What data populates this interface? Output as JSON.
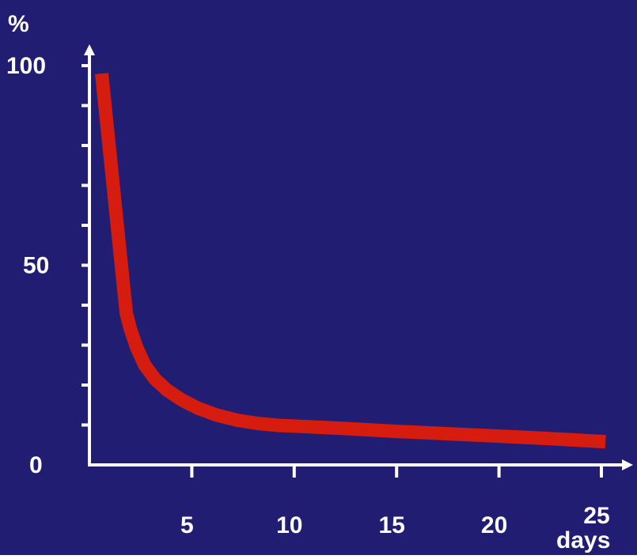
{
  "colors": {
    "background": "#211D73",
    "axis": "#FFFFFF",
    "curve": "#D61C0E",
    "text": "#FFFFFF"
  },
  "chart_data": {
    "type": "line",
    "title": "",
    "ylabel": "%",
    "xlabel": "days",
    "xlim": [
      0.5,
      26.5
    ],
    "ylim": [
      0,
      100
    ],
    "x_ticks": [
      5,
      10,
      15,
      20,
      25
    ],
    "x_tick_labels": [
      "5",
      "10",
      "15",
      "20",
      "25"
    ],
    "y_tick_labels": [
      {
        "value": 100,
        "label": "100"
      },
      {
        "value": 50,
        "label": "50"
      },
      {
        "value": 0,
        "label": "0"
      }
    ],
    "y_minor_step": 10,
    "grid": false,
    "legend": "none",
    "series": [
      {
        "x": [
          0.6,
          1.0,
          1.4,
          1.8,
          2.0,
          2.3,
          2.7,
          3.2,
          3.8,
          4.5,
          5.3,
          6.2,
          7.2,
          8.2,
          9.2,
          10.5,
          12.5,
          15.0,
          17.5,
          20.0,
          22.5,
          25.2
        ],
        "y": [
          98,
          78,
          58,
          38,
          34,
          29.5,
          25,
          21.5,
          18.7,
          16.3,
          14.2,
          12.5,
          11.2,
          10.4,
          9.9,
          9.6,
          9.1,
          8.4,
          7.8,
          7.2,
          6.6,
          5.8
        ]
      }
    ]
  }
}
